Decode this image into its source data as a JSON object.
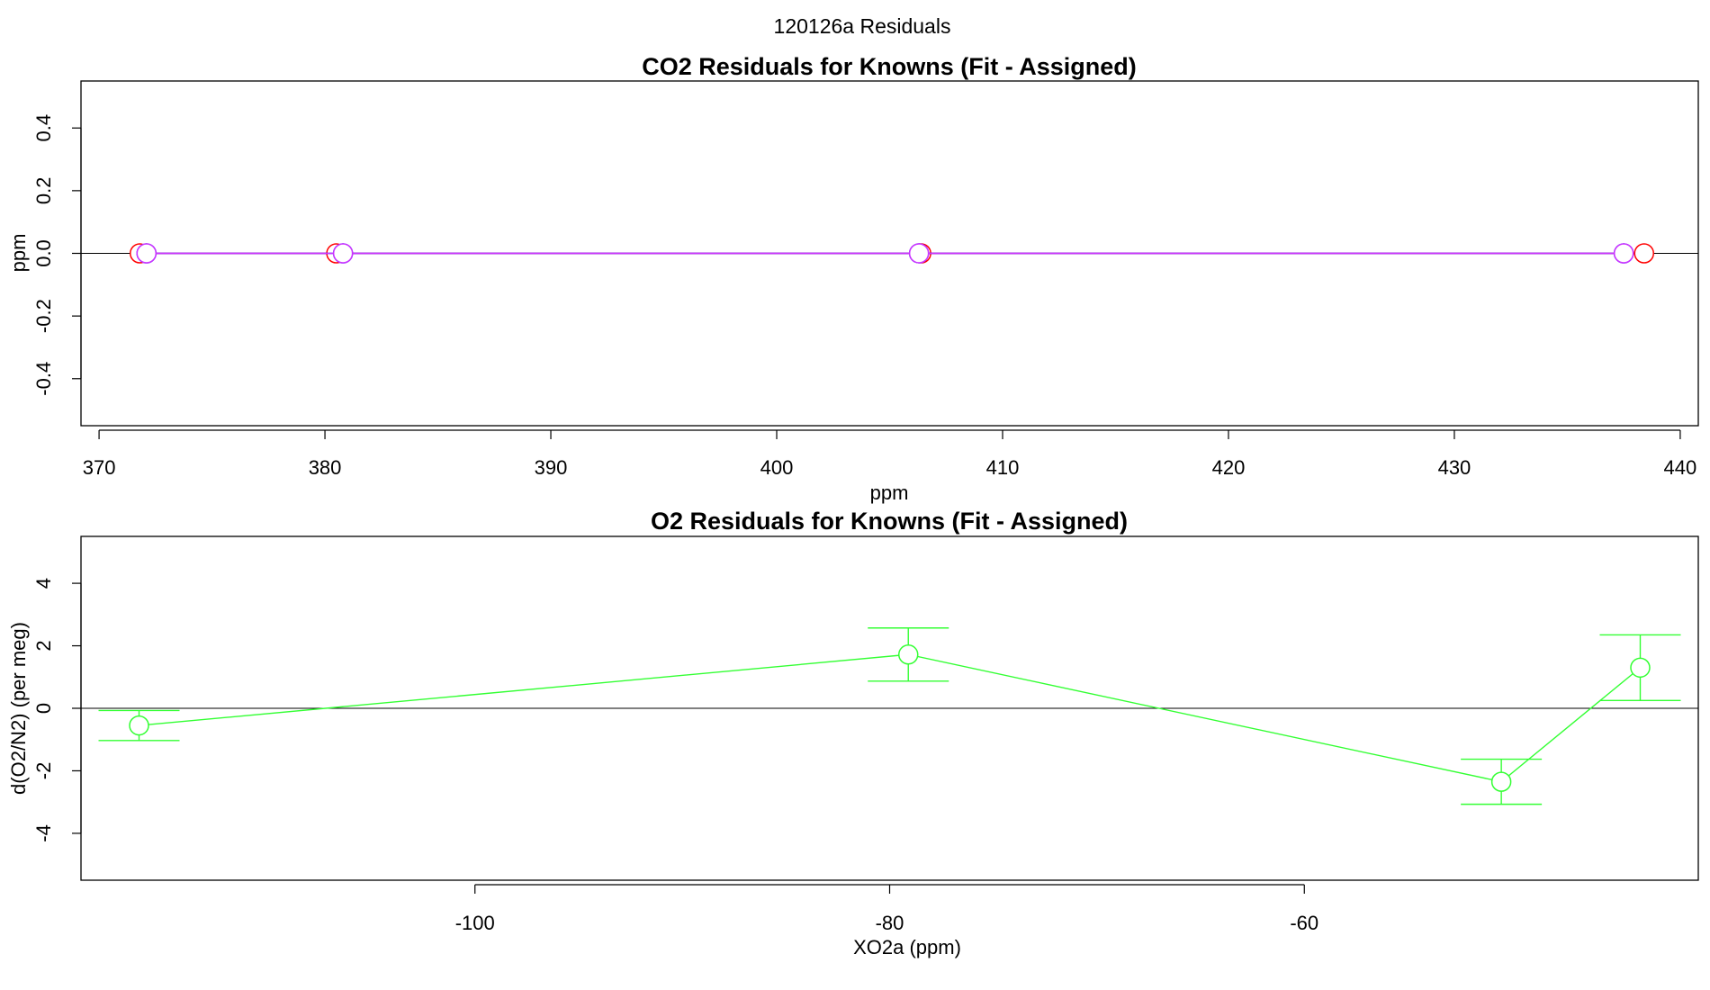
{
  "figure": {
    "title": "120126a  Residuals"
  },
  "chart_data": [
    {
      "type": "scatter",
      "title": "CO2 Residuals for Knowns (Fit - Assigned)",
      "xlabel": "ppm",
      "ylabel": "ppm",
      "xlim": [
        369.2,
        440.8
      ],
      "ylim": [
        -0.55,
        0.55
      ],
      "xticks": [
        370,
        380,
        390,
        400,
        410,
        420,
        430,
        440
      ],
      "xtick_labels": [
        "370",
        "380",
        "390",
        "400",
        "410",
        "420",
        "430",
        "440"
      ],
      "yticks": [
        -0.4,
        -0.2,
        0.0,
        0.2,
        0.4
      ],
      "ytick_labels": [
        "-0.4",
        "-0.2",
        "0.0",
        "0.2",
        "0.4"
      ],
      "hline": 0,
      "grid": false,
      "series": [
        {
          "color": "#ff0000",
          "x": [
            371.8,
            380.5,
            406.4,
            438.4
          ],
          "y": [
            0,
            0,
            0,
            0
          ]
        },
        {
          "color": "#0000ff",
          "x": [
            372.1,
            380.8,
            406.3,
            437.5
          ],
          "y": [
            0,
            0,
            0,
            0
          ]
        },
        {
          "color": "#cc33ff",
          "x": [
            372.1,
            380.8,
            406.3,
            437.5
          ],
          "y": [
            0,
            0,
            0,
            0
          ]
        }
      ]
    },
    {
      "type": "line",
      "title": "O2 Residuals for Knowns (Fit - Assigned)",
      "xlabel": "XO2a (ppm)",
      "ylabel": "d(O2/N2) (per meg)",
      "xlim": [
        -119.0,
        -41.0
      ],
      "ylim": [
        -5.5,
        5.5
      ],
      "xticks": [
        -100,
        -80,
        -60
      ],
      "xtick_labels": [
        "-100",
        "-80",
        "-60"
      ],
      "yticks": [
        -4,
        -2,
        0,
        2,
        4
      ],
      "ytick_labels": [
        "-4",
        "-2",
        "0",
        "2",
        "4"
      ],
      "hline": 0,
      "grid": false,
      "series": [
        {
          "color": "#33ff33",
          "x": [
            -116.2,
            -79.1,
            -50.5,
            -43.8
          ],
          "y": [
            -0.55,
            1.72,
            -2.35,
            1.3
          ],
          "err": [
            0.48,
            0.85,
            0.72,
            1.05
          ]
        }
      ]
    }
  ]
}
